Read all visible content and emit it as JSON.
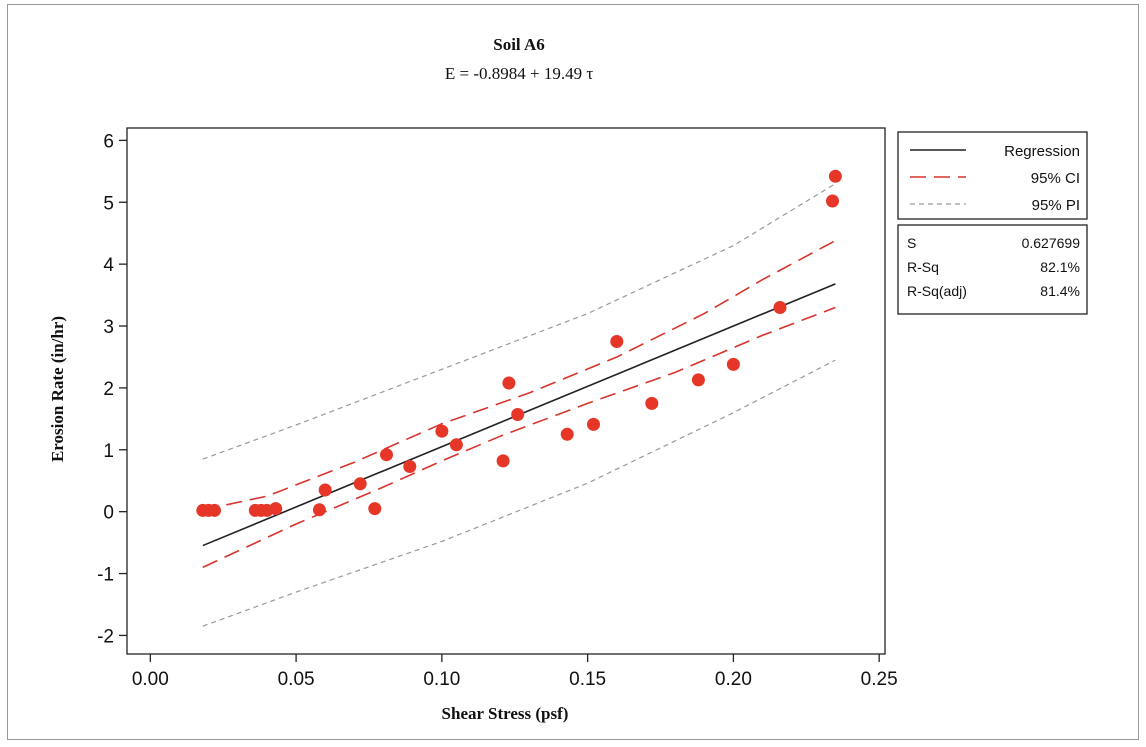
{
  "chart_data": {
    "type": "scatter",
    "title": "Soil A6",
    "subtitle": "E = -0.8984 + 19.49 τ",
    "xlabel": "Shear Stress (psf)",
    "ylabel": "Erosion Rate (in/hr)",
    "xlim": [
      -0.008,
      0.252
    ],
    "ylim": [
      -2.3,
      6.2
    ],
    "xticks": [
      "0.00",
      "0.05",
      "0.10",
      "0.15",
      "0.20",
      "0.25"
    ],
    "yticks": [
      "-2",
      "-1",
      "0",
      "1",
      "2",
      "3",
      "4",
      "5",
      "6"
    ],
    "grid": false,
    "legend_position": "right",
    "legend": [
      {
        "label": "Regression",
        "style": "solid",
        "color": "#222222"
      },
      {
        "label": "95% CI",
        "style": "long-dash",
        "color": "#d8342c"
      },
      {
        "label": "95% PI",
        "style": "short-dash",
        "color": "#999999"
      }
    ],
    "stats": [
      {
        "name": "S",
        "value": "0.627699"
      },
      {
        "name": "R-Sq",
        "value": "82.1%"
      },
      {
        "name": "R-Sq(adj)",
        "value": "81.4%"
      }
    ],
    "regression": {
      "intercept": -0.8984,
      "slope": 19.49
    },
    "ci_lower": [
      [
        0.018,
        -0.9
      ],
      [
        0.05,
        -0.2
      ],
      [
        0.08,
        0.4
      ],
      [
        0.1,
        0.82
      ],
      [
        0.12,
        1.22
      ],
      [
        0.15,
        1.75
      ],
      [
        0.18,
        2.25
      ],
      [
        0.21,
        2.85
      ],
      [
        0.235,
        3.3
      ]
    ],
    "ci_upper": [
      [
        0.018,
        0.03
      ],
      [
        0.04,
        0.25
      ],
      [
        0.07,
        0.8
      ],
      [
        0.1,
        1.42
      ],
      [
        0.13,
        1.92
      ],
      [
        0.16,
        2.5
      ],
      [
        0.19,
        3.2
      ],
      [
        0.21,
        3.75
      ],
      [
        0.235,
        4.38
      ]
    ],
    "pi_lower": [
      [
        0.018,
        -1.85
      ],
      [
        0.05,
        -1.3
      ],
      [
        0.1,
        -0.48
      ],
      [
        0.15,
        0.46
      ],
      [
        0.2,
        1.6
      ],
      [
        0.235,
        2.45
      ]
    ],
    "pi_upper": [
      [
        0.018,
        0.85
      ],
      [
        0.05,
        1.4
      ],
      [
        0.1,
        2.3
      ],
      [
        0.15,
        3.2
      ],
      [
        0.2,
        4.3
      ],
      [
        0.235,
        5.3
      ]
    ],
    "colors": {
      "points": "#e53628",
      "ci": "#d8342c",
      "pi": "#999999",
      "regression": "#222222"
    },
    "points": [
      [
        0.018,
        0.02
      ],
      [
        0.02,
        0.02
      ],
      [
        0.022,
        0.02
      ],
      [
        0.036,
        0.02
      ],
      [
        0.038,
        0.02
      ],
      [
        0.04,
        0.02
      ],
      [
        0.043,
        0.05
      ],
      [
        0.058,
        0.03
      ],
      [
        0.06,
        0.35
      ],
      [
        0.072,
        0.45
      ],
      [
        0.077,
        0.05
      ],
      [
        0.081,
        0.92
      ],
      [
        0.089,
        0.73
      ],
      [
        0.1,
        1.3
      ],
      [
        0.105,
        1.08
      ],
      [
        0.121,
        0.82
      ],
      [
        0.123,
        2.08
      ],
      [
        0.126,
        1.57
      ],
      [
        0.143,
        1.25
      ],
      [
        0.152,
        1.41
      ],
      [
        0.16,
        2.75
      ],
      [
        0.172,
        1.75
      ],
      [
        0.188,
        2.13
      ],
      [
        0.2,
        2.38
      ],
      [
        0.216,
        3.3
      ],
      [
        0.234,
        5.02
      ],
      [
        0.235,
        5.42
      ]
    ]
  }
}
